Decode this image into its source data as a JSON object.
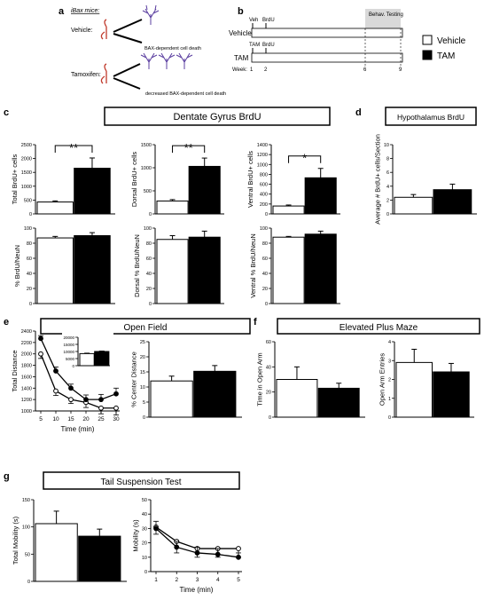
{
  "panel_letters": {
    "a": "a",
    "b": "b",
    "c": "c",
    "d": "d",
    "e": "e",
    "f": "f",
    "g": "g"
  },
  "legend": {
    "vehicle": "Vehicle",
    "tam": "TAM",
    "vehicle_color": "#ffffff",
    "tam_color": "#000000"
  },
  "schematic": {
    "title": "iBax mice:",
    "vehicle_label": "Vehicle:",
    "vehicle_outcome": "BAX-dependent cell death",
    "tamoxifen_label": "Tamoxifen:",
    "tamoxifen_outcome": "decreased BAX-dependent cell death"
  },
  "timeline": {
    "veh": "Veh",
    "brdu1": "BrdU",
    "vehicle_row": "Vehicle",
    "tam_top": "TAM",
    "brdu2": "BrdU",
    "tam_row": "TAM",
    "behav": "Behav. Testing",
    "week": "Week:",
    "weeks": [
      "1",
      "2",
      "6",
      "9"
    ]
  },
  "titles": {
    "c": "Dentate Gyrus BrdU",
    "d": "Hypothalamus BrdU",
    "e": "Open Field",
    "f": "Elevated Plus Maze",
    "g": "Tail Suspension Test"
  },
  "chart_data": [
    {
      "id": "c1",
      "type": "bar",
      "categories": [
        "Vehicle",
        "TAM"
      ],
      "values": [
        430,
        1650
      ],
      "errors": [
        40,
        370
      ],
      "ylabel": "Total BrdU+ cells",
      "ylim": [
        0,
        2500
      ],
      "ticks": [
        0,
        500,
        1000,
        1500,
        2000,
        2500
      ],
      "significance": "**"
    },
    {
      "id": "c2",
      "type": "bar",
      "categories": [
        "Vehicle",
        "TAM"
      ],
      "values": [
        280,
        1030
      ],
      "errors": [
        30,
        180
      ],
      "ylabel": "Dorsal BrdU+ cells",
      "ylim": [
        0,
        1500
      ],
      "ticks": [
        0,
        500,
        1000,
        1500
      ],
      "significance": "**"
    },
    {
      "id": "c3",
      "type": "bar",
      "categories": [
        "Vehicle",
        "TAM"
      ],
      "values": [
        160,
        730
      ],
      "errors": [
        20,
        190
      ],
      "ylabel": "Ventral BrdU+ cells",
      "ylim": [
        0,
        1400
      ],
      "ticks": [
        0,
        200,
        400,
        600,
        800,
        1000,
        1200,
        1400
      ],
      "significance": "*"
    },
    {
      "id": "c4",
      "type": "bar",
      "categories": [
        "Vehicle",
        "TAM"
      ],
      "values": [
        87,
        90
      ],
      "errors": [
        2,
        4
      ],
      "ylabel": "% BrdU/NeuN",
      "ylim": [
        0,
        100
      ],
      "ticks": [
        0,
        20,
        40,
        60,
        80,
        100
      ]
    },
    {
      "id": "c5",
      "type": "bar",
      "categories": [
        "Vehicle",
        "TAM"
      ],
      "values": [
        85,
        88
      ],
      "errors": [
        5,
        8
      ],
      "ylabel": "Dorsal % BrdU/NeuN",
      "ylim": [
        0,
        100
      ],
      "ticks": [
        0,
        20,
        40,
        60,
        80,
        100
      ]
    },
    {
      "id": "c6",
      "type": "bar",
      "categories": [
        "Vehicle",
        "TAM"
      ],
      "values": [
        88,
        92
      ],
      "errors": [
        1,
        4
      ],
      "ylabel": "Ventral % BrdU/NeuN",
      "ylim": [
        0,
        100
      ],
      "ticks": [
        0,
        20,
        40,
        60,
        80,
        100
      ]
    },
    {
      "id": "d1",
      "type": "bar",
      "categories": [
        "Vehicle",
        "TAM"
      ],
      "values": [
        2.4,
        3.5
      ],
      "errors": [
        0.4,
        0.8
      ],
      "ylabel": "Average # BrdU+ cells/Section",
      "ylim": [
        0,
        10
      ],
      "ticks": [
        0,
        2,
        4,
        6,
        8,
        10
      ]
    },
    {
      "id": "e1",
      "type": "line",
      "x": [
        5,
        10,
        15,
        20,
        25,
        30
      ],
      "series": [
        {
          "name": "Vehicle",
          "values": [
            2000,
            1350,
            1200,
            1150,
            1050,
            1050
          ],
          "errors": [
            80,
            80,
            70,
            90,
            100,
            120
          ]
        },
        {
          "name": "TAM",
          "values": [
            2270,
            1700,
            1400,
            1200,
            1200,
            1300
          ],
          "errors": [
            50,
            70,
            70,
            80,
            90,
            100
          ]
        }
      ],
      "xlabel": "Time (min)",
      "ylabel": "Total Distance",
      "ylim": [
        1000,
        2400
      ],
      "ticks": [
        1000,
        1200,
        1400,
        1600,
        1800,
        2000,
        2200,
        2400
      ]
    },
    {
      "id": "e_inset",
      "type": "bar",
      "categories": [
        "Vehicle",
        "TAM"
      ],
      "values": [
        8500,
        10000
      ],
      "errors": [
        300,
        300
      ],
      "ylim": [
        0,
        20000
      ],
      "ticks": [
        0,
        5000,
        10000,
        15000,
        20000
      ]
    },
    {
      "id": "e2",
      "type": "bar",
      "categories": [
        "Vehicle",
        "TAM"
      ],
      "values": [
        12,
        15.2
      ],
      "errors": [
        1.6,
        1.9
      ],
      "ylabel": "% Center Distance",
      "ylim": [
        0,
        25
      ],
      "ticks": [
        0,
        5,
        10,
        15,
        20,
        25
      ]
    },
    {
      "id": "f1",
      "type": "bar",
      "categories": [
        "Vehicle",
        "TAM"
      ],
      "values": [
        30,
        23
      ],
      "errors": [
        10,
        4
      ],
      "ylabel": "Time in Open Arm",
      "ylim": [
        0,
        60
      ],
      "ticks": [
        0,
        20,
        40,
        60
      ]
    },
    {
      "id": "f2",
      "type": "bar",
      "categories": [
        "Vehicle",
        "TAM"
      ],
      "values": [
        2.9,
        2.4
      ],
      "errors": [
        0.7,
        0.45
      ],
      "ylabel": "Open Arm Entries",
      "ylim": [
        0,
        4
      ],
      "ticks": [
        0,
        1,
        2,
        3,
        4
      ]
    },
    {
      "id": "g1",
      "type": "bar",
      "categories": [
        "Vehicle",
        "TAM"
      ],
      "values": [
        106,
        83
      ],
      "errors": [
        23,
        13
      ],
      "ylabel": "Total Mobility (s)",
      "ylim": [
        0,
        150
      ],
      "ticks": [
        0,
        50,
        100,
        150
      ]
    },
    {
      "id": "g2",
      "type": "line",
      "x": [
        1,
        2,
        3,
        4,
        5
      ],
      "series": [
        {
          "name": "Vehicle",
          "values": [
            31,
            21,
            16,
            16,
            16
          ],
          "errors": [
            5,
            8,
            6,
            6,
            6
          ]
        },
        {
          "name": "TAM",
          "values": [
            30,
            17,
            13,
            12,
            10
          ],
          "errors": [
            5,
            4,
            4,
            4,
            3
          ]
        }
      ],
      "xlabel": "Time (min)",
      "ylabel": "Mobility (s)",
      "ylim": [
        0,
        50
      ],
      "ticks": [
        0,
        10,
        20,
        30,
        40,
        50
      ]
    }
  ]
}
